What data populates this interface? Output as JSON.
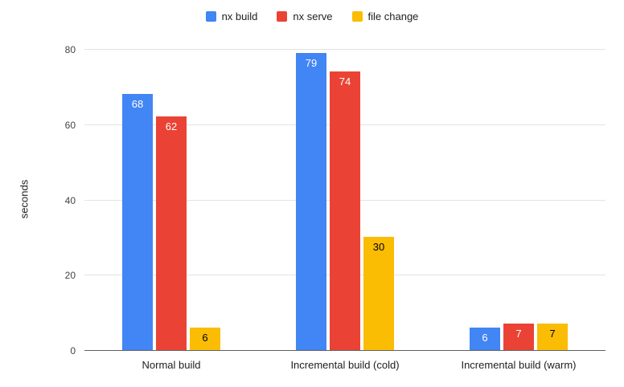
{
  "chart_data": {
    "type": "bar",
    "title": "",
    "xlabel": "",
    "ylabel": "seconds",
    "categories": [
      "Normal build",
      "Incremental build (cold)",
      "Incremental build (warm)"
    ],
    "series": [
      {
        "name": "nx build",
        "color": "#4285F4",
        "label_color": "#ffffff",
        "values": [
          68,
          79,
          6
        ]
      },
      {
        "name": "nx serve",
        "color": "#EA4335",
        "label_color": "#ffffff",
        "values": [
          62,
          74,
          7
        ]
      },
      {
        "name": "file change",
        "color": "#FBBC04",
        "label_color": "#000000",
        "values": [
          6,
          30,
          7
        ]
      }
    ],
    "yticks": [
      0,
      20,
      40,
      60,
      80
    ],
    "ylim": [
      0,
      83
    ],
    "grid": true,
    "legend_position": "top",
    "colors": {
      "gridline": "#e3e3e3",
      "axis_line": "#616161",
      "tick_text": "#444444",
      "label_text": "#202124"
    }
  }
}
